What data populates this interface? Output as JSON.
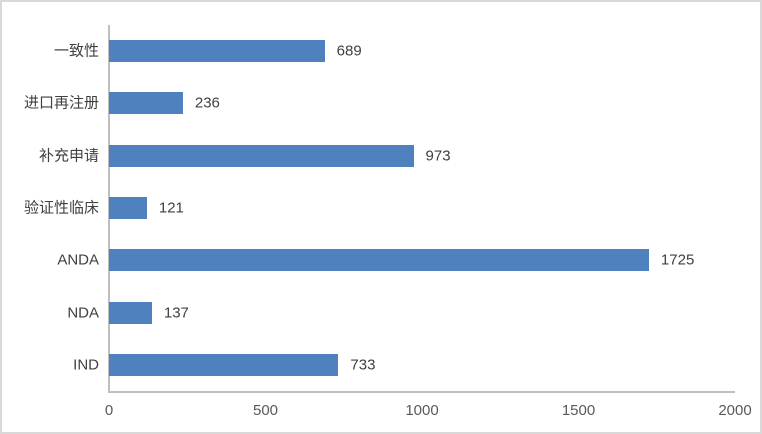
{
  "chart_data": {
    "type": "bar",
    "orientation": "horizontal",
    "title": "",
    "xlabel": "",
    "ylabel": "",
    "categories": [
      "一致性",
      "进口再注册",
      "补充申请",
      "验证性临床",
      "ANDA",
      "NDA",
      "IND"
    ],
    "values": [
      689,
      236,
      973,
      121,
      1725,
      137,
      733
    ],
    "data_labels": [
      "689",
      "236",
      "973",
      "121",
      "1725",
      "137",
      "733"
    ],
    "xlim": [
      0,
      2000
    ],
    "x_ticks": [
      "0",
      "500",
      "1000",
      "1500",
      "2000"
    ],
    "x_tick_values": [
      0,
      500,
      1000,
      1500,
      2000
    ],
    "grid": false,
    "legend": false,
    "colors": {
      "bar_fill": "#4e81bd",
      "axis_line": "#bfbfbf",
      "category_label": "#404040",
      "data_label": "#404040",
      "tick_label": "#595959",
      "frame_border": "#d9d9d9",
      "background": "#ffffff"
    }
  }
}
